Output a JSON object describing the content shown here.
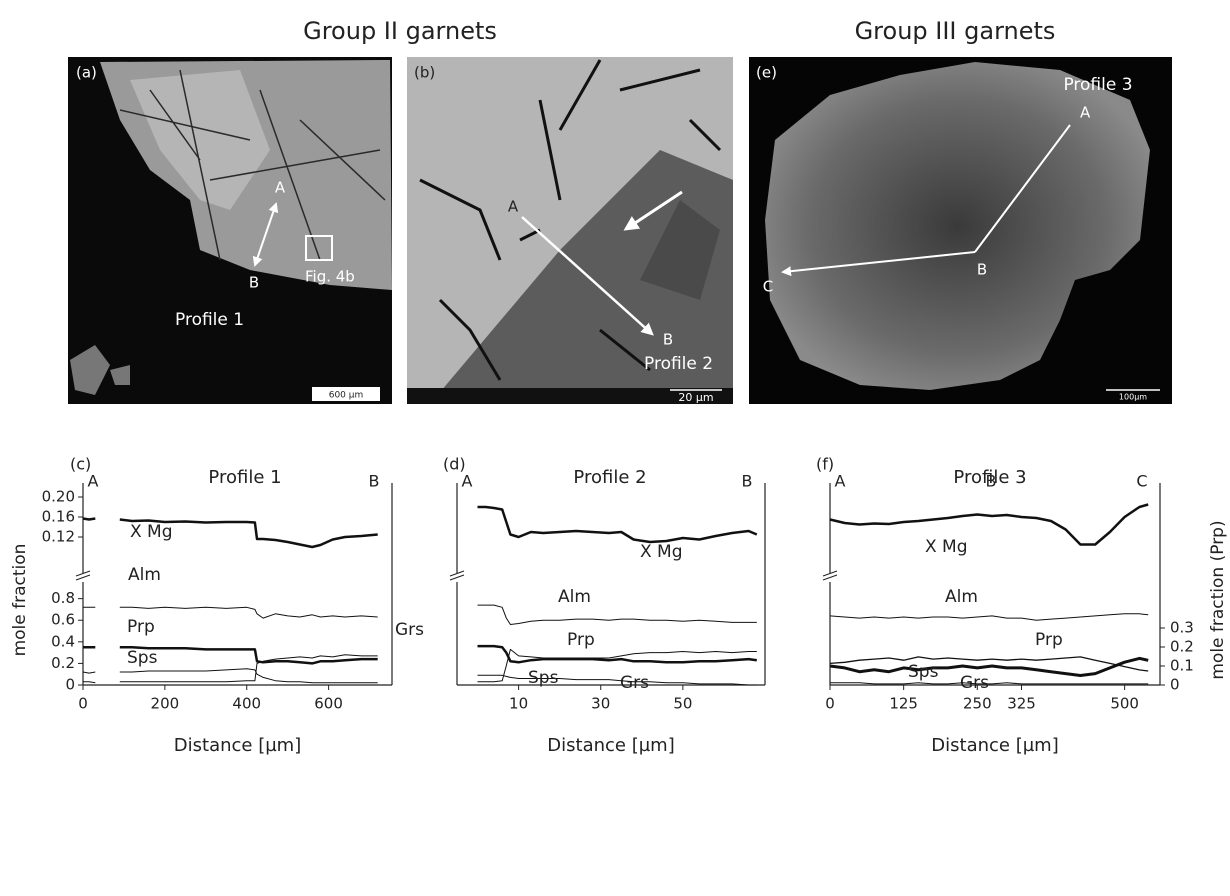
{
  "headers": [
    "Group II garnets",
    "Group III garnets"
  ],
  "images": [
    {
      "label": "(a)",
      "points": [
        "A",
        "B"
      ],
      "box_label": "Fig. 4b",
      "profile": "Profile 1",
      "scale": "600 µm"
    },
    {
      "label": "(b)",
      "points": [
        "A",
        "B"
      ],
      "profile": "Profile 2",
      "scale": "20 µm"
    },
    {
      "label": "(e)",
      "points": [
        "A",
        "B",
        "C"
      ],
      "profile": "Profile 3",
      "scale": "100µm"
    }
  ],
  "chart_data": [
    {
      "type": "line",
      "panel": "(c)",
      "title": "Profile 1",
      "profile_points": [
        "A",
        "B"
      ],
      "xlabel": "Distance [µm]",
      "ylabel": "mole fraction",
      "xlim": [
        0,
        750
      ],
      "xticks": [
        0,
        200,
        400,
        600
      ],
      "ylim": [
        0,
        0.88
      ],
      "yticks": [
        0,
        0.2,
        0.4,
        0.6,
        0.8
      ],
      "upper_ylim": [
        0.06,
        0.22
      ],
      "upper_yticks": [
        0.12,
        0.16,
        {
          "value": 0.2,
          "label": "0.20"
        }
      ],
      "x": [
        0,
        15,
        30,
        60,
        90,
        120,
        160,
        200,
        250,
        300,
        350,
        400,
        420,
        425,
        440,
        470,
        500,
        530,
        560,
        580,
        610,
        640,
        680,
        720
      ],
      "series": [
        {
          "name": "X Mg",
          "color": "#111",
          "line_width": 2.5,
          "axis": "upper",
          "values": [
            0.157,
            0.155,
            0.157,
            null,
            0.155,
            0.152,
            0.153,
            0.15,
            0.151,
            0.149,
            0.15,
            0.15,
            0.149,
            0.116,
            0.116,
            0.114,
            0.11,
            0.105,
            0.1,
            0.104,
            0.115,
            0.12,
            0.122,
            0.125
          ]
        },
        {
          "name": "Alm",
          "color": "#111",
          "line_width": 1,
          "values": [
            0.72,
            0.72,
            0.72,
            null,
            0.72,
            0.72,
            0.71,
            0.72,
            0.71,
            0.72,
            0.71,
            0.72,
            0.7,
            0.66,
            0.62,
            0.66,
            0.64,
            0.63,
            0.65,
            0.63,
            0.64,
            0.63,
            0.64,
            0.63
          ]
        },
        {
          "name": "Prp",
          "color": "#111",
          "line_width": 2.5,
          "values": [
            0.35,
            0.35,
            0.35,
            null,
            0.35,
            0.35,
            0.34,
            0.34,
            0.34,
            0.33,
            0.33,
            0.33,
            0.33,
            0.22,
            0.21,
            0.22,
            0.22,
            0.21,
            0.2,
            0.22,
            0.22,
            0.23,
            0.24,
            0.24
          ]
        },
        {
          "name": "Grs",
          "color": "#111",
          "line_width": 1,
          "values": [
            0.03,
            0.03,
            0.02,
            null,
            0.03,
            0.03,
            0.03,
            0.03,
            0.03,
            0.03,
            0.03,
            0.04,
            0.04,
            0.2,
            0.22,
            0.24,
            0.25,
            0.26,
            0.25,
            0.27,
            0.26,
            0.28,
            0.27,
            0.27
          ]
        },
        {
          "name": "Sps",
          "color": "#111",
          "line_width": 1,
          "values": [
            0.12,
            0.11,
            0.12,
            null,
            0.12,
            0.12,
            0.13,
            0.13,
            0.13,
            0.13,
            0.14,
            0.15,
            0.14,
            0.1,
            0.07,
            0.04,
            0.03,
            0.03,
            0.02,
            0.02,
            0.02,
            0.02,
            0.02,
            0.02
          ]
        }
      ]
    },
    {
      "type": "line",
      "panel": "(d)",
      "title": "Profile 2",
      "profile_points": [
        "A",
        "B"
      ],
      "xlabel": "Distance [µm]",
      "xlim": [
        -5,
        70
      ],
      "xticks": [
        10,
        30,
        50
      ],
      "ylim": [
        0,
        0.88
      ],
      "upper_ylim": [
        0.06,
        0.22
      ],
      "x": [
        0,
        2,
        4,
        6,
        7,
        8,
        10,
        13,
        16,
        20,
        24,
        28,
        32,
        35,
        38,
        42,
        46,
        50,
        54,
        58,
        62,
        66,
        68
      ],
      "series": [
        {
          "name": "X Mg",
          "color": "#111",
          "line_width": 2.5,
          "axis": "upper",
          "values": [
            0.18,
            0.18,
            0.178,
            0.175,
            0.15,
            0.125,
            0.12,
            0.13,
            0.128,
            0.13,
            0.132,
            0.13,
            0.128,
            0.13,
            0.115,
            0.11,
            0.112,
            0.118,
            0.115,
            0.122,
            0.128,
            0.132,
            0.125
          ]
        },
        {
          "name": "Alm",
          "color": "#111",
          "line_width": 1,
          "values": [
            0.74,
            0.74,
            0.74,
            0.72,
            0.62,
            0.56,
            0.57,
            0.59,
            0.6,
            0.6,
            0.61,
            0.61,
            0.6,
            0.61,
            0.61,
            0.6,
            0.6,
            0.59,
            0.6,
            0.59,
            0.58,
            0.58,
            0.58
          ]
        },
        {
          "name": "Prp",
          "color": "#111",
          "line_width": 2.5,
          "values": [
            0.36,
            0.36,
            0.36,
            0.35,
            0.3,
            0.22,
            0.21,
            0.23,
            0.24,
            0.24,
            0.24,
            0.24,
            0.23,
            0.24,
            0.22,
            0.22,
            0.21,
            0.21,
            0.22,
            0.22,
            0.23,
            0.24,
            0.23
          ]
        },
        {
          "name": "Grs",
          "color": "#111",
          "line_width": 1,
          "values": [
            0.03,
            0.03,
            0.03,
            0.04,
            0.18,
            0.33,
            0.27,
            0.26,
            0.25,
            0.25,
            0.25,
            0.25,
            0.25,
            0.27,
            0.29,
            0.3,
            0.3,
            0.31,
            0.3,
            0.31,
            0.3,
            0.31,
            0.31
          ]
        },
        {
          "name": "Sps",
          "color": "#111",
          "line_width": 1,
          "values": [
            0.09,
            0.09,
            0.09,
            0.09,
            0.08,
            0.07,
            0.06,
            0.06,
            0.06,
            0.06,
            0.05,
            0.05,
            0.05,
            0.04,
            0.03,
            0.03,
            0.02,
            0.02,
            0.01,
            0.01,
            0.01,
            0.0,
            0.0
          ]
        }
      ]
    },
    {
      "type": "line",
      "panel": "(f)",
      "title": "Profile 3",
      "profile_points": [
        "A",
        "B",
        "C"
      ],
      "xlabel": "Distance [µm]",
      "y2label": "mole fraction (Prp)",
      "xlim": [
        0,
        560
      ],
      "xticks": [
        0,
        125,
        250,
        325,
        500
      ],
      "ylim": [
        0,
        0.88
      ],
      "upper_ylim": [
        0.06,
        0.22
      ],
      "y2lim": [
        0,
        0.5
      ],
      "y2ticks": [
        0,
        0.1,
        0.2,
        0.3
      ],
      "x": [
        0,
        25,
        50,
        75,
        100,
        125,
        150,
        175,
        200,
        225,
        250,
        275,
        300,
        325,
        350,
        375,
        400,
        425,
        450,
        475,
        500,
        525,
        540
      ],
      "series": [
        {
          "name": "X Mg",
          "color": "#111",
          "line_width": 2.5,
          "axis": "upper",
          "values": [
            0.155,
            0.148,
            0.145,
            0.147,
            0.146,
            0.15,
            0.152,
            0.155,
            0.158,
            0.162,
            0.165,
            0.162,
            0.164,
            0.16,
            0.158,
            0.152,
            0.135,
            0.105,
            0.105,
            0.13,
            0.16,
            0.18,
            0.185
          ]
        },
        {
          "name": "Alm",
          "color": "#111",
          "line_width": 1,
          "values": [
            0.64,
            0.63,
            0.62,
            0.63,
            0.62,
            0.63,
            0.62,
            0.63,
            0.63,
            0.62,
            0.63,
            0.64,
            0.62,
            0.62,
            0.6,
            0.61,
            0.62,
            0.63,
            0.64,
            0.65,
            0.66,
            0.66,
            0.65
          ]
        },
        {
          "name": "Prp",
          "color": "#111",
          "line_width": 3,
          "axis": "y2",
          "values": [
            0.1,
            0.09,
            0.07,
            0.08,
            0.07,
            0.09,
            0.08,
            0.09,
            0.09,
            0.1,
            0.09,
            0.1,
            0.09,
            0.09,
            0.08,
            0.07,
            0.06,
            0.05,
            0.06,
            0.09,
            0.12,
            0.14,
            0.13
          ]
        },
        {
          "name": "Grs",
          "color": "#111",
          "line_width": 1.3,
          "values": [
            0.2,
            0.21,
            0.23,
            0.24,
            0.25,
            0.23,
            0.26,
            0.24,
            0.25,
            0.24,
            0.23,
            0.24,
            0.23,
            0.24,
            0.23,
            0.24,
            0.25,
            0.26,
            0.23,
            0.2,
            0.17,
            0.14,
            0.13
          ]
        },
        {
          "name": "Sps",
          "color": "#111",
          "line_width": 1,
          "values": [
            0.02,
            0.02,
            0.02,
            0.01,
            0.01,
            0.01,
            0.02,
            0.01,
            0.01,
            0.02,
            0.01,
            0.01,
            0.02,
            0.01,
            0.01,
            0.01,
            0.01,
            0.01,
            0.01,
            0.01,
            0.01,
            0.01,
            0.01
          ]
        }
      ]
    }
  ]
}
